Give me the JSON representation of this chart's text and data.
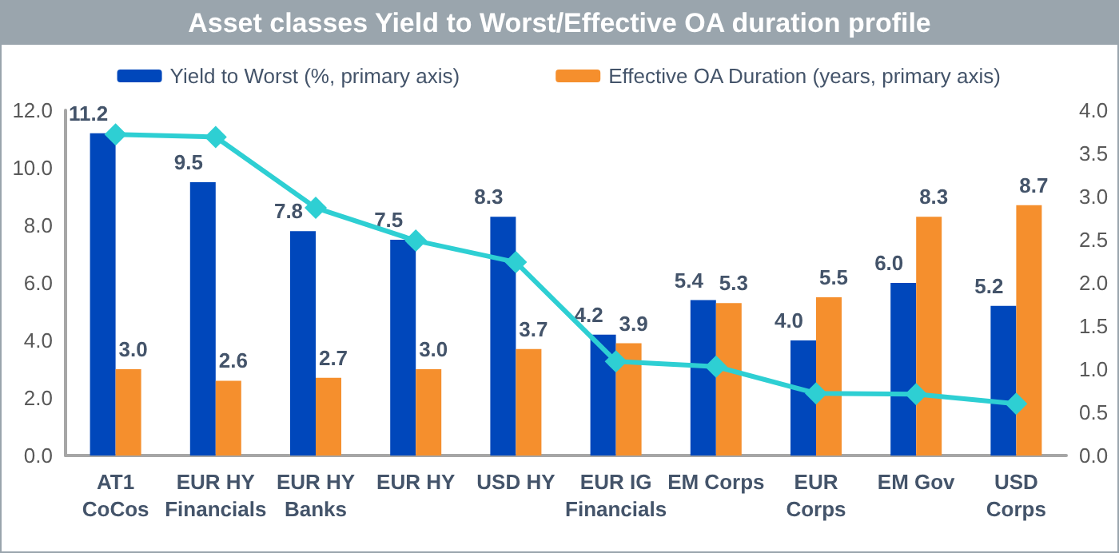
{
  "chart_data": {
    "type": "bar",
    "title": "Asset classes Yield to Worst/Effective OA duration profile",
    "categories": [
      "AT1\nCoCos",
      "EUR HY\nFinancials",
      "EUR HY\nBanks",
      "EUR HY",
      "USD HY",
      "EUR IG\nFinancials",
      "EM Corps",
      "EUR\nCorps",
      "EM Gov",
      "USD\nCorps"
    ],
    "series": [
      {
        "name": "Yield to Worst (%, primary axis)",
        "color": "#0047bb",
        "values": [
          11.2,
          9.5,
          7.8,
          7.5,
          8.3,
          4.2,
          5.4,
          4.0,
          6.0,
          5.2
        ],
        "value_labels": [
          "11.2",
          "9.5",
          "7.8",
          "7.5",
          "8.3",
          "4.2",
          "5.4",
          "4.0",
          "6.0",
          "5.2"
        ]
      },
      {
        "name": "Effective OA Duration (years, primary axis)",
        "color": "#f58f2d",
        "values": [
          3.0,
          2.6,
          2.7,
          3.0,
          3.7,
          3.9,
          5.3,
          5.5,
          8.3,
          8.7
        ],
        "value_labels": [
          "3.0",
          "2.6",
          "2.7",
          "3.0",
          "3.7",
          "3.9",
          "5.3",
          "5.5",
          "8.3",
          "8.7"
        ]
      },
      {
        "type": "line",
        "axis": "y2",
        "color": "#2ecfd3",
        "marker": "diamond",
        "values": [
          3.72,
          3.69,
          2.87,
          2.49,
          2.24,
          1.09,
          1.03,
          0.72,
          0.71,
          0.6
        ]
      }
    ],
    "ylim": [
      0,
      12
    ],
    "yticks": [
      {
        "value": 0,
        "label": "0.0"
      },
      {
        "value": 2,
        "label": "2.0"
      },
      {
        "value": 4,
        "label": "4.0"
      },
      {
        "value": 6,
        "label": "6.0"
      },
      {
        "value": 8,
        "label": "8.0"
      },
      {
        "value": 10,
        "label": "10.0"
      },
      {
        "value": 12,
        "label": "12.0"
      }
    ],
    "y2lim": [
      0,
      4
    ],
    "y2ticks": [
      {
        "value": 0,
        "label": "0.0"
      },
      {
        "value": 0.5,
        "label": "0.5"
      },
      {
        "value": 1,
        "label": "1.0"
      },
      {
        "value": 1.5,
        "label": "1.5"
      },
      {
        "value": 2,
        "label": "2.0"
      },
      {
        "value": 2.5,
        "label": "2.5"
      },
      {
        "value": 3,
        "label": "3.0"
      },
      {
        "value": 3.5,
        "label": "3.5"
      },
      {
        "value": 4,
        "label": "4.0"
      }
    ],
    "grid": false,
    "legend": "top"
  }
}
